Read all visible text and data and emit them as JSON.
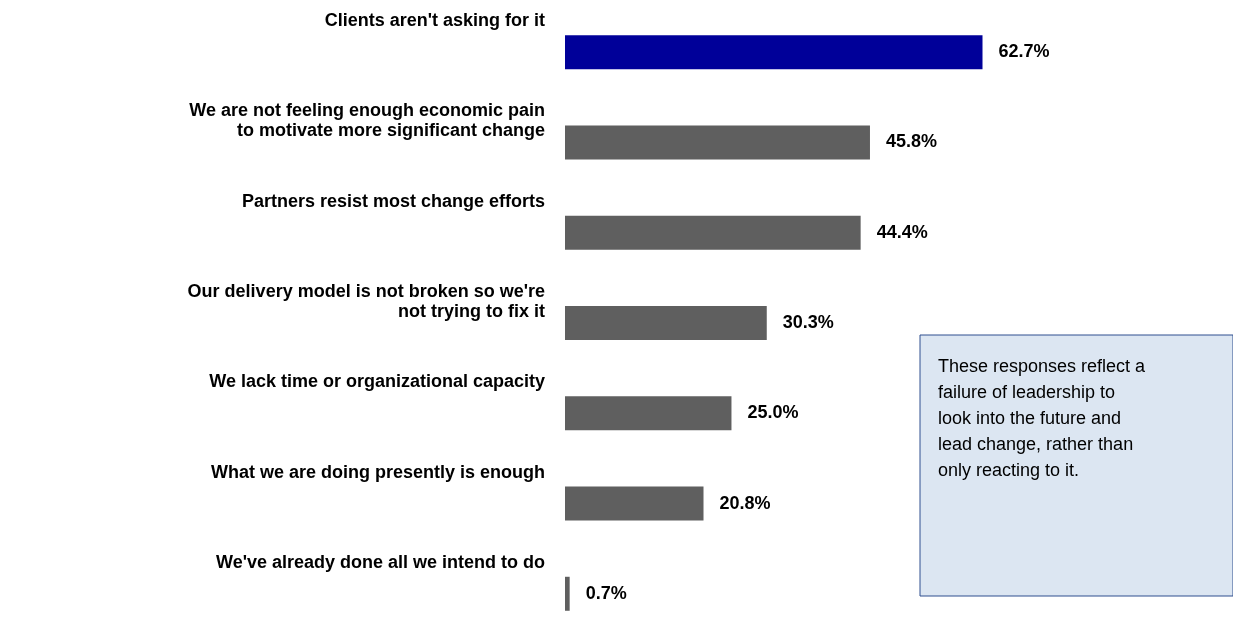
{
  "chart_data": {
    "type": "bar",
    "orientation": "horizontal",
    "categories": [
      "Clients aren't asking for it",
      "We are not feeling enough economic pain\nto motivate more significant change",
      "Partners resist most change efforts",
      "Our delivery model is not broken so we're\nnot trying to fix it",
      "We lack time or organizational capacity",
      "What we are doing presently is enough",
      "We've already done all we intend to do"
    ],
    "values": [
      62.7,
      45.8,
      44.4,
      30.3,
      25.0,
      20.8,
      0.7
    ],
    "value_labels": [
      "62.7%",
      "45.8%",
      "44.4%",
      "30.3%",
      "25.0%",
      "20.8%",
      "0.7%"
    ],
    "colors": [
      "#000099",
      "#5f5f5f",
      "#5f5f5f",
      "#5f5f5f",
      "#5f5f5f",
      "#5f5f5f",
      "#5f5f5f"
    ],
    "annotations": [
      "These responses reflect a failure of leadership to look into the future and lead change, rather than only reacting to it."
    ]
  }
}
